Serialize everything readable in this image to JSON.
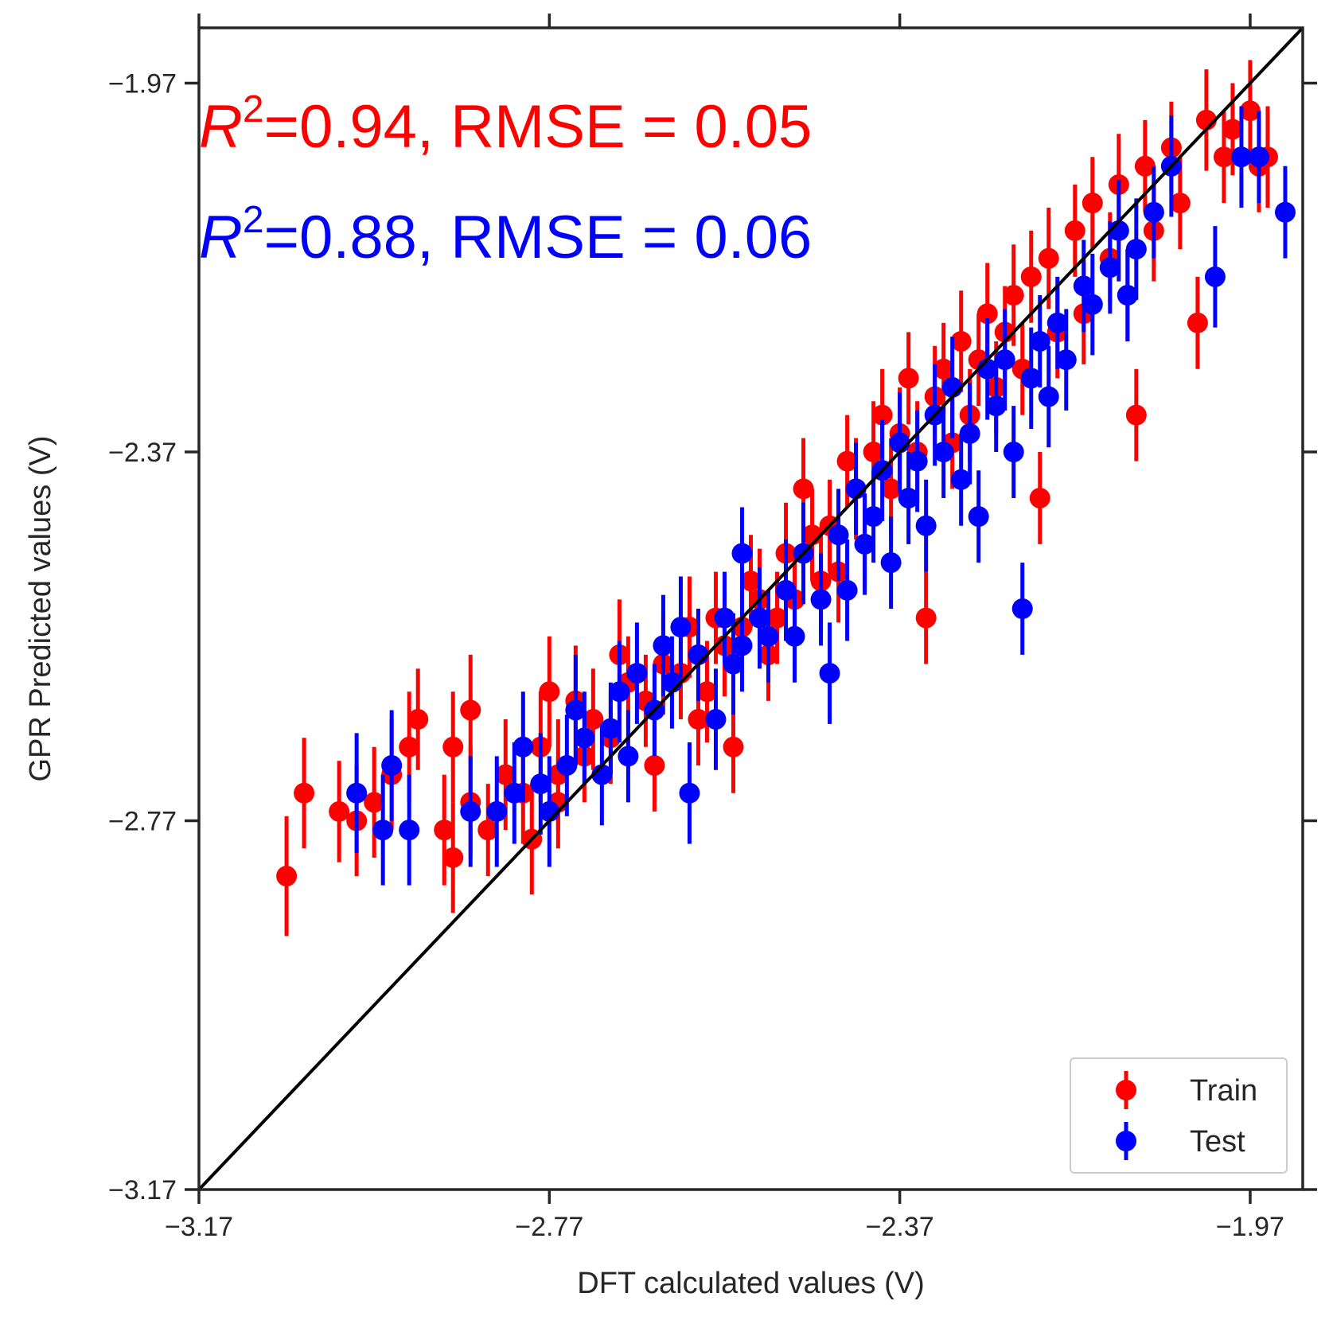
{
  "chart_data": {
    "type": "scatter",
    "xlabel": "DFT calculated values (V)",
    "ylabel": "GPR Predicted values (V)",
    "xlim": [
      -3.17,
      -1.91
    ],
    "ylim": [
      -3.17,
      -1.91
    ],
    "xticks": [
      "−3.17",
      "−2.77",
      "−2.37",
      "−1.97"
    ],
    "yticks": [
      "−3.17",
      "−2.77",
      "−2.37",
      "−1.97"
    ],
    "xtick_values": [
      -3.17,
      -2.77,
      -2.37,
      -1.97
    ],
    "ytick_values": [
      -3.17,
      -2.77,
      -2.37,
      -1.97
    ],
    "grid": false,
    "legend_position": "bottom-right",
    "parity_line": true,
    "annotations": [
      {
        "sup_base": "R",
        "sup": "2",
        "text": "=0.94, RMSE = 0.05",
        "color": "#ff0000"
      },
      {
        "sup_base": "R",
        "sup": "2",
        "text": "=0.88, RMSE = 0.06",
        "color": "#0000ff"
      }
    ],
    "series": [
      {
        "name": "Train",
        "color": "#ff0000",
        "points": [
          [
            -3.07,
            -2.83,
            0.065
          ],
          [
            -3.05,
            -2.74,
            0.06
          ],
          [
            -3.01,
            -2.76,
            0.055
          ],
          [
            -2.99,
            -2.77,
            0.06
          ],
          [
            -2.97,
            -2.75,
            0.06
          ],
          [
            -2.95,
            -2.72,
            0.06
          ],
          [
            -2.93,
            -2.69,
            0.06
          ],
          [
            -2.92,
            -2.66,
            0.055
          ],
          [
            -2.89,
            -2.78,
            0.06
          ],
          [
            -2.88,
            -2.69,
            0.06
          ],
          [
            -2.88,
            -2.81,
            0.06
          ],
          [
            -2.86,
            -2.75,
            0.06
          ],
          [
            -2.86,
            -2.65,
            0.06
          ],
          [
            -2.84,
            -2.78,
            0.05
          ],
          [
            -2.82,
            -2.72,
            0.06
          ],
          [
            -2.8,
            -2.74,
            0.055
          ],
          [
            -2.79,
            -2.79,
            0.06
          ],
          [
            -2.78,
            -2.69,
            0.06
          ],
          [
            -2.77,
            -2.63,
            0.06
          ],
          [
            -2.76,
            -2.75,
            0.05
          ],
          [
            -2.76,
            -2.72,
            0.06
          ],
          [
            -2.74,
            -2.64,
            0.06
          ],
          [
            -2.73,
            -2.7,
            0.05
          ],
          [
            -2.72,
            -2.66,
            0.055
          ],
          [
            -2.7,
            -2.68,
            0.05
          ],
          [
            -2.69,
            -2.59,
            0.06
          ],
          [
            -2.68,
            -2.62,
            0.05
          ],
          [
            -2.66,
            -2.64,
            0.05
          ],
          [
            -2.65,
            -2.71,
            0.05
          ],
          [
            -2.64,
            -2.6,
            0.055
          ],
          [
            -2.62,
            -2.61,
            0.05
          ],
          [
            -2.61,
            -2.56,
            0.055
          ],
          [
            -2.6,
            -2.66,
            0.05
          ],
          [
            -2.59,
            -2.63,
            0.055
          ],
          [
            -2.58,
            -2.55,
            0.05
          ],
          [
            -2.57,
            -2.58,
            0.055
          ],
          [
            -2.56,
            -2.69,
            0.05
          ],
          [
            -2.55,
            -2.56,
            0.055
          ],
          [
            -2.54,
            -2.51,
            0.05
          ],
          [
            -2.53,
            -2.53,
            0.055
          ],
          [
            -2.52,
            -2.59,
            0.05
          ],
          [
            -2.51,
            -2.55,
            0.05
          ],
          [
            -2.5,
            -2.48,
            0.055
          ],
          [
            -2.49,
            -2.53,
            0.05
          ],
          [
            -2.48,
            -2.41,
            0.055
          ],
          [
            -2.47,
            -2.46,
            0.05
          ],
          [
            -2.46,
            -2.51,
            0.055
          ],
          [
            -2.45,
            -2.45,
            0.05
          ],
          [
            -2.44,
            -2.5,
            0.055
          ],
          [
            -2.43,
            -2.38,
            0.05
          ],
          [
            -2.42,
            -2.41,
            0.055
          ],
          [
            -2.41,
            -2.47,
            0.05
          ],
          [
            -2.4,
            -2.37,
            0.055
          ],
          [
            -2.39,
            -2.33,
            0.05
          ],
          [
            -2.38,
            -2.41,
            0.055
          ],
          [
            -2.37,
            -2.35,
            0.05
          ],
          [
            -2.36,
            -2.29,
            0.05
          ],
          [
            -2.35,
            -2.37,
            0.055
          ],
          [
            -2.34,
            -2.55,
            0.05
          ],
          [
            -2.33,
            -2.31,
            0.055
          ],
          [
            -2.32,
            -2.28,
            0.05
          ],
          [
            -2.31,
            -2.36,
            0.05
          ],
          [
            -2.3,
            -2.25,
            0.055
          ],
          [
            -2.29,
            -2.33,
            0.05
          ],
          [
            -2.28,
            -2.27,
            0.05
          ],
          [
            -2.27,
            -2.22,
            0.055
          ],
          [
            -2.26,
            -2.3,
            0.05
          ],
          [
            -2.25,
            -2.24,
            0.05
          ],
          [
            -2.24,
            -2.2,
            0.055
          ],
          [
            -2.23,
            -2.28,
            0.05
          ],
          [
            -2.22,
            -2.18,
            0.05
          ],
          [
            -2.21,
            -2.42,
            0.05
          ],
          [
            -2.2,
            -2.16,
            0.055
          ],
          [
            -2.19,
            -2.24,
            0.05
          ],
          [
            -2.17,
            -2.13,
            0.05
          ],
          [
            -2.16,
            -2.22,
            0.055
          ],
          [
            -2.15,
            -2.1,
            0.05
          ],
          [
            -2.13,
            -2.16,
            0.05
          ],
          [
            -2.12,
            -2.08,
            0.055
          ],
          [
            -2.11,
            -2.2,
            0.05
          ],
          [
            -2.1,
            -2.33,
            0.05
          ],
          [
            -2.09,
            -2.06,
            0.05
          ],
          [
            -2.08,
            -2.13,
            0.055
          ],
          [
            -2.06,
            -2.04,
            0.05
          ],
          [
            -2.05,
            -2.1,
            0.05
          ],
          [
            -2.03,
            -2.23,
            0.05
          ],
          [
            -2.02,
            -2.01,
            0.055
          ],
          [
            -2.0,
            -2.05,
            0.05
          ],
          [
            -1.99,
            -2.02,
            0.05
          ],
          [
            -1.97,
            -2.0,
            0.055
          ],
          [
            -1.96,
            -2.06,
            0.05
          ],
          [
            -1.95,
            -2.05,
            0.055
          ]
        ]
      },
      {
        "name": "Test",
        "color": "#0000ff",
        "points": [
          [
            -2.99,
            -2.74,
            0.065
          ],
          [
            -2.96,
            -2.78,
            0.06
          ],
          [
            -2.95,
            -2.71,
            0.06
          ],
          [
            -2.93,
            -2.78,
            0.06
          ],
          [
            -2.86,
            -2.76,
            0.06
          ],
          [
            -2.83,
            -2.76,
            0.06
          ],
          [
            -2.81,
            -2.74,
            0.055
          ],
          [
            -2.8,
            -2.69,
            0.06
          ],
          [
            -2.78,
            -2.73,
            0.055
          ],
          [
            -2.77,
            -2.76,
            0.06
          ],
          [
            -2.75,
            -2.71,
            0.055
          ],
          [
            -2.74,
            -2.65,
            0.06
          ],
          [
            -2.73,
            -2.68,
            0.05
          ],
          [
            -2.71,
            -2.72,
            0.055
          ],
          [
            -2.7,
            -2.67,
            0.05
          ],
          [
            -2.69,
            -2.63,
            0.055
          ],
          [
            -2.68,
            -2.7,
            0.05
          ],
          [
            -2.67,
            -2.61,
            0.055
          ],
          [
            -2.65,
            -2.65,
            0.05
          ],
          [
            -2.64,
            -2.58,
            0.055
          ],
          [
            -2.63,
            -2.62,
            0.05
          ],
          [
            -2.61,
            -2.74,
            0.055
          ],
          [
            -2.6,
            -2.59,
            0.05
          ],
          [
            -2.58,
            -2.66,
            0.055
          ],
          [
            -2.57,
            -2.55,
            0.05
          ],
          [
            -2.56,
            -2.6,
            0.055
          ],
          [
            -2.55,
            -2.48,
            0.05
          ],
          [
            -2.53,
            -2.55,
            0.055
          ],
          [
            -2.52,
            -2.57,
            0.05
          ],
          [
            -2.5,
            -2.52,
            0.055
          ],
          [
            -2.49,
            -2.57,
            0.05
          ],
          [
            -2.48,
            -2.48,
            0.055
          ],
          [
            -2.46,
            -2.53,
            0.05
          ],
          [
            -2.45,
            -2.61,
            0.055
          ],
          [
            -2.44,
            -2.46,
            0.05
          ],
          [
            -2.43,
            -2.52,
            0.055
          ],
          [
            -2.42,
            -2.41,
            0.05
          ],
          [
            -2.41,
            -2.47,
            0.055
          ],
          [
            -2.4,
            -2.44,
            0.05
          ],
          [
            -2.39,
            -2.39,
            0.055
          ],
          [
            -2.38,
            -2.49,
            0.05
          ],
          [
            -2.37,
            -2.36,
            0.055
          ],
          [
            -2.36,
            -2.42,
            0.05
          ],
          [
            -2.35,
            -2.38,
            0.055
          ],
          [
            -2.34,
            -2.45,
            0.05
          ],
          [
            -2.33,
            -2.33,
            0.055
          ],
          [
            -2.32,
            -2.37,
            0.05
          ],
          [
            -2.31,
            -2.3,
            0.055
          ],
          [
            -2.3,
            -2.4,
            0.05
          ],
          [
            -2.29,
            -2.35,
            0.055
          ],
          [
            -2.28,
            -2.44,
            0.05
          ],
          [
            -2.27,
            -2.28,
            0.055
          ],
          [
            -2.26,
            -2.32,
            0.05
          ],
          [
            -2.25,
            -2.27,
            0.055
          ],
          [
            -2.24,
            -2.37,
            0.05
          ],
          [
            -2.23,
            -2.54,
            0.05
          ],
          [
            -2.22,
            -2.29,
            0.055
          ],
          [
            -2.21,
            -2.25,
            0.05
          ],
          [
            -2.2,
            -2.31,
            0.055
          ],
          [
            -2.19,
            -2.23,
            0.05
          ],
          [
            -2.18,
            -2.27,
            0.055
          ],
          [
            -2.16,
            -2.19,
            0.05
          ],
          [
            -2.15,
            -2.21,
            0.055
          ],
          [
            -2.13,
            -2.17,
            0.05
          ],
          [
            -2.12,
            -2.13,
            0.055
          ],
          [
            -2.11,
            -2.2,
            0.05
          ],
          [
            -2.1,
            -2.15,
            0.055
          ],
          [
            -2.08,
            -2.11,
            0.05
          ],
          [
            -2.06,
            -2.06,
            0.055
          ],
          [
            -2.01,
            -2.18,
            0.055
          ],
          [
            -1.98,
            -2.05,
            0.055
          ],
          [
            -1.96,
            -2.05,
            0.05
          ],
          [
            -1.93,
            -2.11,
            0.05
          ],
          [
            -2.55,
            -2.58,
            0.05
          ],
          [
            -2.62,
            -2.56,
            0.055
          ]
        ]
      }
    ]
  }
}
